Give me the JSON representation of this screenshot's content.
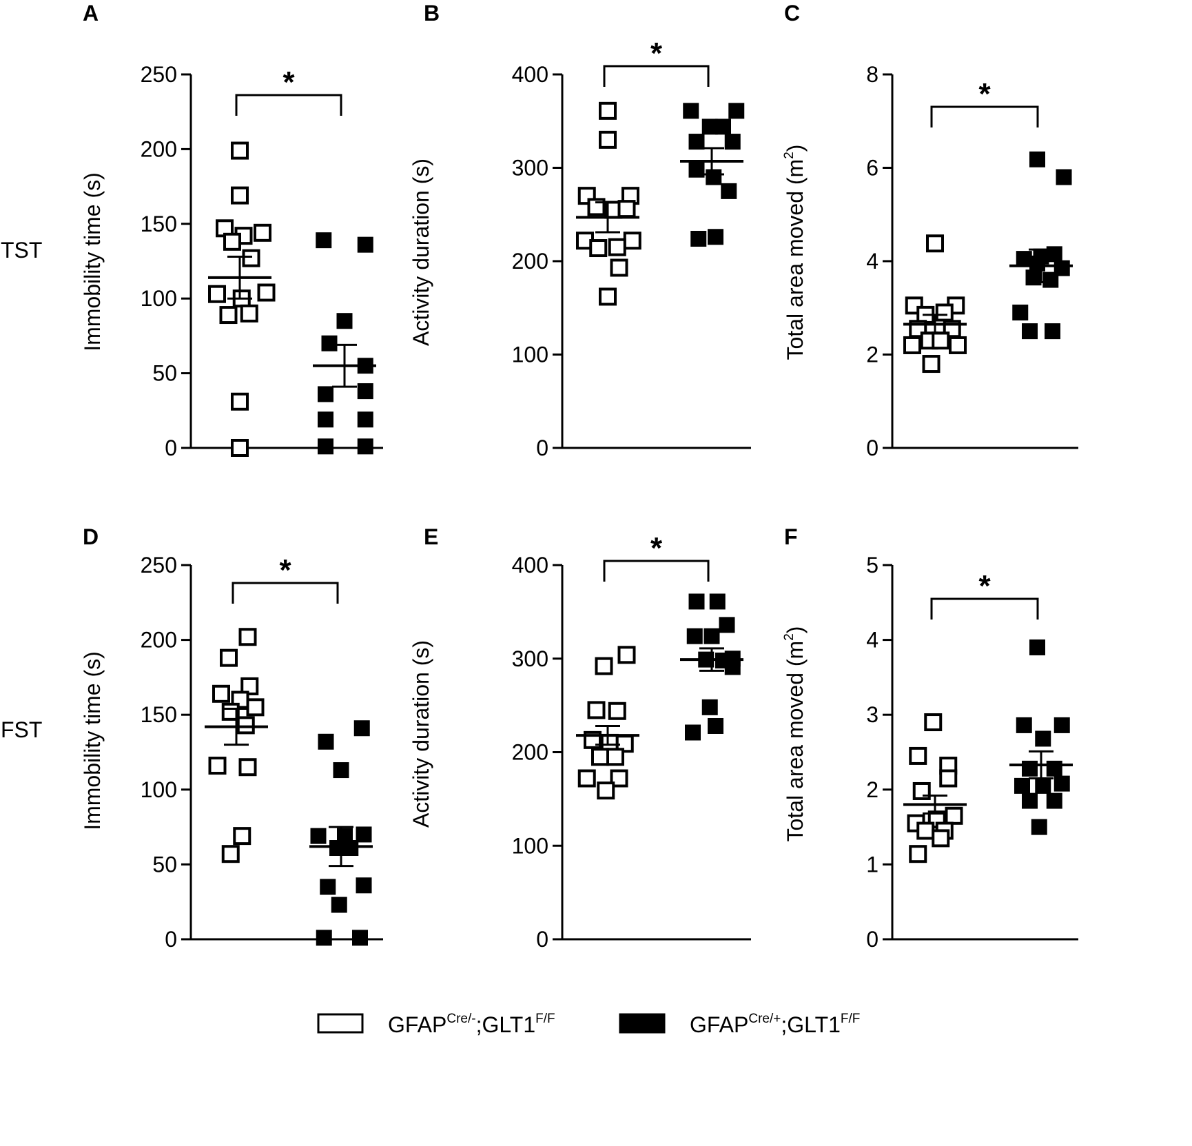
{
  "row_labels": [
    "TST",
    "FST"
  ],
  "legend": {
    "entries": [
      {
        "prefix": "GFAP",
        "sup1": "Cre/-",
        "mid": ";GLT1",
        "sup2": "F/F",
        "fill": "#ffffff"
      },
      {
        "prefix": "GFAP",
        "sup1": "Cre/+",
        "mid": ";GLT1",
        "sup2": "F/F",
        "fill": "#000000"
      }
    ]
  },
  "colors": {
    "axis": "#000000",
    "control_fill": "#ffffff",
    "mutant_fill": "#000000"
  },
  "chart_data": [
    {
      "panel": "A",
      "type": "scatter",
      "row": "TST",
      "ylabel": "Immobility time (s)",
      "ylim": [
        0,
        250
      ],
      "yticks": [
        0,
        50,
        100,
        150,
        200,
        250
      ],
      "significance": "*",
      "series": [
        {
          "name": "GFAP Cre/-;GLT1 F/F",
          "mean": 114,
          "sem": 14,
          "points": [
            [
              0,
              199
            ],
            [
              0,
              169
            ],
            [
              -0.4,
              147
            ],
            [
              0.1,
              142
            ],
            [
              0.6,
              144
            ],
            [
              -0.2,
              138
            ],
            [
              0.3,
              127
            ],
            [
              -0.6,
              103
            ],
            [
              0.05,
              100
            ],
            [
              0.7,
              104
            ],
            [
              -0.3,
              89
            ],
            [
              0.25,
              90
            ],
            [
              0,
              31
            ],
            [
              0,
              0
            ]
          ]
        },
        {
          "name": "GFAP Cre/+;GLT1 F/F",
          "mean": 55,
          "sem": 14,
          "points": [
            [
              -0.55,
              139
            ],
            [
              0.55,
              136
            ],
            [
              0,
              85
            ],
            [
              -0.4,
              70
            ],
            [
              0.55,
              55
            ],
            [
              -0.5,
              36
            ],
            [
              0.55,
              38
            ],
            [
              -0.5,
              19
            ],
            [
              0.55,
              19
            ],
            [
              -0.5,
              1
            ],
            [
              0.55,
              1
            ]
          ]
        }
      ]
    },
    {
      "panel": "B",
      "type": "scatter",
      "row": "TST",
      "ylabel": "Activity duration (s)",
      "ylim": [
        0,
        400
      ],
      "yticks": [
        0,
        100,
        200,
        300,
        400
      ],
      "significance": "*",
      "series": [
        {
          "name": "GFAP Cre/-;GLT1 F/F",
          "mean": 247,
          "sem": 16,
          "points": [
            [
              0,
              361
            ],
            [
              0,
              330
            ],
            [
              -0.55,
              270
            ],
            [
              0.6,
              270
            ],
            [
              -0.3,
              258
            ],
            [
              0.15,
              255
            ],
            [
              0.5,
              256
            ],
            [
              -0.6,
              222
            ],
            [
              0.65,
              222
            ],
            [
              -0.25,
              214
            ],
            [
              0.25,
              215
            ],
            [
              0.3,
              193
            ],
            [
              0,
              162
            ]
          ]
        },
        {
          "name": "GFAP Cre/+;GLT1 F/F",
          "mean": 307,
          "sem": 14,
          "points": [
            [
              -0.55,
              361
            ],
            [
              0.65,
              361
            ],
            [
              -0.05,
              344
            ],
            [
              0.3,
              344
            ],
            [
              -0.4,
              328
            ],
            [
              0.55,
              328
            ],
            [
              -0.4,
              298
            ],
            [
              0.05,
              290
            ],
            [
              0.45,
              275
            ],
            [
              -0.35,
              224
            ],
            [
              0.1,
              226
            ]
          ]
        }
      ]
    },
    {
      "panel": "C",
      "type": "scatter",
      "row": "TST",
      "ylabel_prefix": "Total area moved (m",
      "ylabel_sup": "2",
      "ylabel_suffix": ")",
      "ylim": [
        0,
        8
      ],
      "yticks": [
        0,
        2,
        4,
        6,
        8
      ],
      "significance": "*",
      "series": [
        {
          "name": "GFAP Cre/-;GLT1 F/F",
          "mean": 2.65,
          "sem": 0.2,
          "points": [
            [
              0,
              4.38
            ],
            [
              -0.55,
              3.05
            ],
            [
              0.55,
              3.05
            ],
            [
              -0.25,
              2.85
            ],
            [
              0.25,
              2.9
            ],
            [
              -0.45,
              2.55
            ],
            [
              0.45,
              2.55
            ],
            [
              -0.6,
              2.2
            ],
            [
              0.6,
              2.2
            ],
            [
              -0.15,
              2.3
            ],
            [
              0.15,
              2.3
            ],
            [
              -0.1,
              1.8
            ]
          ]
        },
        {
          "name": "GFAP Cre/+;GLT1 F/F",
          "mean": 3.9,
          "sem": 0.35,
          "points": [
            [
              -0.1,
              6.18
            ],
            [
              0.6,
              5.8
            ],
            [
              -0.45,
              4.05
            ],
            [
              0,
              4.1
            ],
            [
              0.35,
              4.15
            ],
            [
              -0.1,
              3.95
            ],
            [
              0.55,
              3.85
            ],
            [
              -0.2,
              3.65
            ],
            [
              0.25,
              3.6
            ],
            [
              -0.55,
              2.9
            ],
            [
              -0.3,
              2.5
            ],
            [
              0.3,
              2.5
            ]
          ]
        }
      ]
    },
    {
      "panel": "D",
      "type": "scatter",
      "row": "FST",
      "ylabel": "Immobility time (s)",
      "ylim": [
        0,
        250
      ],
      "yticks": [
        0,
        50,
        100,
        150,
        200,
        250
      ],
      "significance": "*",
      "series": [
        {
          "name": "GFAP Cre/-;GLT1 F/F",
          "mean": 142,
          "sem": 12,
          "points": [
            [
              0.3,
              202
            ],
            [
              -0.2,
              188
            ],
            [
              0.35,
              169
            ],
            [
              -0.4,
              164
            ],
            [
              0.1,
              160
            ],
            [
              -0.15,
              152
            ],
            [
              0.5,
              155
            ],
            [
              0.25,
              143
            ],
            [
              -0.5,
              116
            ],
            [
              0.3,
              115
            ],
            [
              0.15,
              69
            ],
            [
              -0.15,
              57
            ]
          ]
        },
        {
          "name": "GFAP Cre/+;GLT1 F/F",
          "mean": 62,
          "sem": 13,
          "points": [
            [
              0.55,
              141
            ],
            [
              -0.4,
              132
            ],
            [
              0,
              113
            ],
            [
              -0.6,
              69
            ],
            [
              0.1,
              69
            ],
            [
              0.6,
              70
            ],
            [
              -0.1,
              61
            ],
            [
              0.25,
              61
            ],
            [
              -0.35,
              35
            ],
            [
              0.6,
              36
            ],
            [
              -0.05,
              23
            ],
            [
              -0.45,
              1
            ],
            [
              0.5,
              1
            ]
          ]
        }
      ]
    },
    {
      "panel": "E",
      "type": "scatter",
      "row": "FST",
      "ylabel": "Activity duration (s)",
      "ylim": [
        0,
        400
      ],
      "yticks": [
        0,
        100,
        200,
        300,
        400
      ],
      "significance": "*",
      "series": [
        {
          "name": "GFAP Cre/-;GLT1 F/F",
          "mean": 218,
          "sem": 10,
          "points": [
            [
              0.5,
              304
            ],
            [
              -0.1,
              292
            ],
            [
              -0.3,
              245
            ],
            [
              0.25,
              244
            ],
            [
              -0.4,
              213
            ],
            [
              0.05,
              210
            ],
            [
              0.45,
              209
            ],
            [
              -0.2,
              195
            ],
            [
              0.2,
              195
            ],
            [
              -0.55,
              172
            ],
            [
              0.3,
              172
            ],
            [
              -0.05,
              159
            ]
          ]
        },
        {
          "name": "GFAP Cre/+;GLT1 F/F",
          "mean": 299,
          "sem": 12,
          "points": [
            [
              -0.4,
              361
            ],
            [
              0.15,
              361
            ],
            [
              0.4,
              336
            ],
            [
              -0.45,
              324
            ],
            [
              0,
              324
            ],
            [
              -0.15,
              299
            ],
            [
              0.3,
              298
            ],
            [
              0.55,
              300
            ],
            [
              -0.05,
              248
            ],
            [
              -0.5,
              221
            ],
            [
              0.1,
              228
            ],
            [
              0.55,
              291
            ]
          ]
        }
      ]
    },
    {
      "panel": "F",
      "type": "scatter",
      "row": "FST",
      "ylabel_prefix": "Total area moved (m",
      "ylabel_sup": "2",
      "ylabel_suffix": ")",
      "ylim": [
        0,
        5
      ],
      "yticks": [
        0,
        1,
        2,
        3,
        4,
        5
      ],
      "significance": "*",
      "series": [
        {
          "name": "GFAP Cre/-;GLT1 F/F",
          "mean": 1.8,
          "sem": 0.12,
          "points": [
            [
              -0.05,
              2.9
            ],
            [
              -0.45,
              2.45
            ],
            [
              0.35,
              2.32
            ],
            [
              0.35,
              2.15
            ],
            [
              -0.35,
              1.98
            ],
            [
              -0.5,
              1.55
            ],
            [
              0.05,
              1.6
            ],
            [
              0.5,
              1.65
            ],
            [
              -0.25,
              1.45
            ],
            [
              0.25,
              1.45
            ],
            [
              0.15,
              1.35
            ],
            [
              -0.45,
              1.14
            ]
          ]
        },
        {
          "name": "GFAP Cre/+;GLT1 F/F",
          "mean": 2.33,
          "sem": 0.18,
          "points": [
            [
              -0.1,
              3.9
            ],
            [
              -0.45,
              2.86
            ],
            [
              0.55,
              2.86
            ],
            [
              0.05,
              2.68
            ],
            [
              -0.3,
              2.28
            ],
            [
              0.35,
              2.28
            ],
            [
              -0.5,
              2.05
            ],
            [
              0.05,
              2.05
            ],
            [
              0.55,
              2.08
            ],
            [
              -0.3,
              1.85
            ],
            [
              0.35,
              1.85
            ],
            [
              -0.05,
              1.5
            ]
          ]
        }
      ]
    }
  ]
}
